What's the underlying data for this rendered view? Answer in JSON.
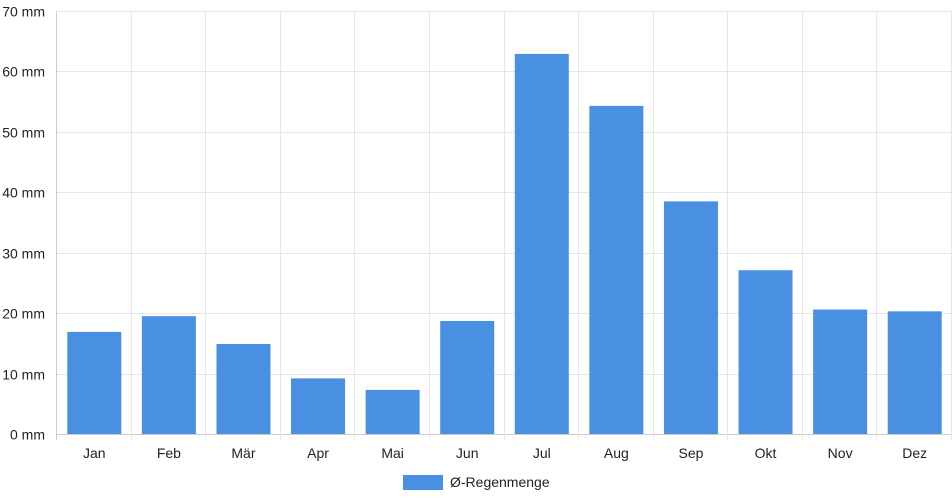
{
  "chart_data": {
    "type": "bar",
    "categories": [
      "Jan",
      "Feb",
      "Mär",
      "Apr",
      "Mai",
      "Jun",
      "Jul",
      "Aug",
      "Sep",
      "Okt",
      "Nov",
      "Dez"
    ],
    "series": [
      {
        "name": "Ø-Regenmenge",
        "values": [
          16.9,
          19.5,
          14.9,
          9.2,
          7.3,
          18.7,
          62.9,
          54.3,
          38.5,
          27.1,
          20.6,
          20.3
        ],
        "color": "#4a90e2"
      }
    ],
    "y_ticks": [
      "0 mm",
      "10 mm",
      "20 mm",
      "30 mm",
      "40 mm",
      "50 mm",
      "60 mm",
      "70 mm"
    ],
    "ylim": [
      0,
      70
    ],
    "y_unit": "mm",
    "grid": true,
    "legend_position": "bottom-center",
    "colors": {
      "grid": "#e6e6e6",
      "axis": "#cccccc",
      "text": "#222222"
    }
  }
}
